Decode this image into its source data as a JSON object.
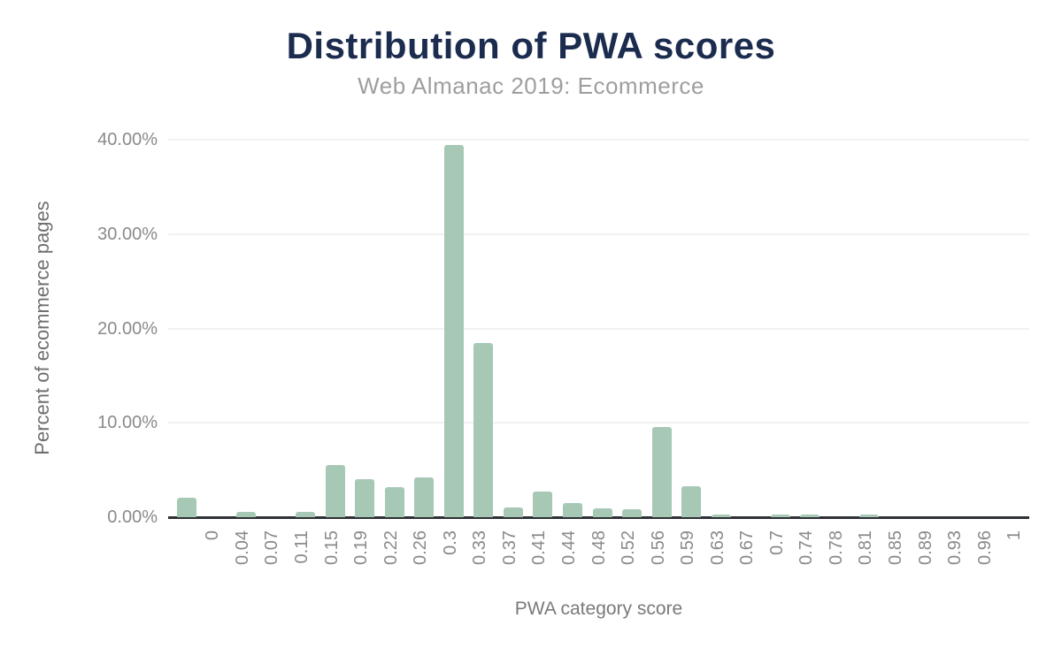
{
  "header": {
    "title": "Distribution of PWA scores",
    "subtitle": "Web Almanac 2019: Ecommerce"
  },
  "axes": {
    "x_title": "PWA category score",
    "y_title": "Percent of ecommerce pages"
  },
  "colors": {
    "bar": "#a6c8b5",
    "title": "#1b2c4f",
    "subtitle": "#9e9e9e",
    "tick_label": "#8a8a8a",
    "axis_title": "#6f6f6f",
    "gridline": "#f1f1f1",
    "axis_line": "#2d3035",
    "background": "#ffffff"
  },
  "chart_data": {
    "type": "bar",
    "title": "Distribution of PWA scores",
    "subtitle": "Web Almanac 2019: Ecommerce",
    "xlabel": "PWA category score",
    "ylabel": "Percent of ecommerce pages",
    "categories": [
      "",
      "0",
      "0.04",
      "0.07",
      "0.11",
      "0.15",
      "0.19",
      "0.22",
      "0.26",
      "0.3",
      "0.33",
      "0.37",
      "0.41",
      "0.44",
      "0.48",
      "0.52",
      "0.56",
      "0.59",
      "0.63",
      "0.67",
      "0.7",
      "0.74",
      "0.78",
      "0.81",
      "0.85",
      "0.89",
      "0.93",
      "0.96",
      "1"
    ],
    "values": [
      2.1,
      0,
      0.55,
      0,
      0.55,
      5.5,
      4.0,
      3.2,
      4.2,
      39.4,
      18.5,
      1.0,
      2.7,
      1.5,
      0.9,
      0.8,
      9.6,
      3.3,
      0.3,
      0,
      0.3,
      0.3,
      0,
      0.3,
      0,
      0,
      0,
      0,
      0
    ],
    "values_unit": "%",
    "y_ticks": [
      "0.00%",
      "10.00%",
      "20.00%",
      "30.00%",
      "40.00%"
    ],
    "y_tick_values": [
      0,
      10,
      20,
      30,
      40
    ],
    "ylim": [
      0,
      40
    ],
    "grid": true,
    "legend": "none",
    "bar_color": "#a6c8b5"
  }
}
